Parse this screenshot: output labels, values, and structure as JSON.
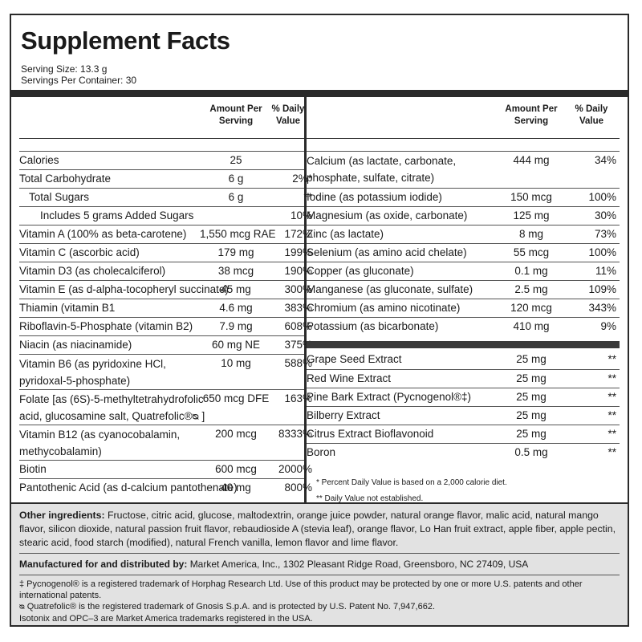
{
  "title": "Supplement Facts",
  "serving_size": "Serving Size: 13.3 g",
  "servings_per_container": "Servings Per Container: 30",
  "header": {
    "amount_line1": "Amount Per",
    "amount_line2": "Serving",
    "dv_line1": "% Daily",
    "dv_line2": "Value"
  },
  "left_rows": [
    {
      "name": "Calories",
      "amount": "25",
      "dv": ""
    },
    {
      "name": "Total Carbohydrate",
      "amount": "6 g",
      "dv": "2%*"
    },
    {
      "name": "Total Sugars",
      "amount": "6 g",
      "dv": "**"
    },
    {
      "name": "Includes 5 grams Added Sugars",
      "amount": "",
      "dv": "10%"
    },
    {
      "name": "Vitamin A (100% as beta-carotene)",
      "amount": "1,550 mcg RAE",
      "dv": "172%"
    },
    {
      "name": "Vitamin C (ascorbic acid)",
      "amount": "179 mg",
      "dv": "199%"
    },
    {
      "name": "Vitamin D3 (as cholecalciferol)",
      "amount": "38 mcg",
      "dv": "190%"
    },
    {
      "name": "Vitamin E (as d-alpha-tocopheryl succinate)",
      "amount": "45 mg",
      "dv": "300%"
    },
    {
      "name": "Thiamin (vitamin B1",
      "amount": "4.6 mg",
      "dv": "383%"
    },
    {
      "name": "Riboflavin-5-Phosphate (vitamin B2)",
      "amount": "7.9 mg",
      "dv": "608%"
    },
    {
      "name": "Niacin (as niacinamide)",
      "amount": "60 mg NE",
      "dv": "375%"
    },
    {
      "name": "Vitamin B6 (as pyridoxine HCl, pyridoxal-5-phosphate)",
      "amount": "10 mg",
      "dv": "588%"
    },
    {
      "name": "Folate [as (6S)-5-methyltetrahydrofolic acid, glucosamine salt, Quatrefolic®ᴓ ]",
      "amount": "650 mcg DFE",
      "dv": "163%"
    },
    {
      "name": "Vitamin B12 (as cyanocobalamin, methycobalamin)",
      "amount": "200 mcg",
      "dv": "8333%"
    },
    {
      "name": "Biotin",
      "amount": "600 mcg",
      "dv": "2000%"
    },
    {
      "name": "Pantothenic Acid (as d-calcium pantothenate)",
      "amount": "40 mg",
      "dv": "800%"
    }
  ],
  "right_rows": [
    {
      "name": "Calcium (as lactate, carbonate, phosphate, sulfate, citrate)",
      "amount": "444 mg",
      "dv": "34%"
    },
    {
      "name": "Iodine (as potassium iodide)",
      "amount": "150 mcg",
      "dv": "100%"
    },
    {
      "name": "Magnesium (as oxide, carbonate)",
      "amount": "125 mg",
      "dv": "30%"
    },
    {
      "name": "Zinc (as lactate)",
      "amount": "8 mg",
      "dv": "73%"
    },
    {
      "name": "Selenium (as amino acid chelate)",
      "amount": "55 mcg",
      "dv": "100%"
    },
    {
      "name": "Copper (as gluconate)",
      "amount": "0.1 mg",
      "dv": "11%"
    },
    {
      "name": "Manganese (as gluconate, sulfate)",
      "amount": "2.5 mg",
      "dv": "109%"
    },
    {
      "name": "Chromium (as amino nicotinate)",
      "amount": "120 mcg",
      "dv": "343%"
    },
    {
      "name": "Potassium (as bicarbonate)",
      "amount": "410 mg",
      "dv": "9%"
    }
  ],
  "extract_rows": [
    {
      "name": "Grape Seed Extract",
      "amount": "25 mg",
      "dv": "**"
    },
    {
      "name": "Red Wine Extract",
      "amount": "25 mg",
      "dv": "**"
    },
    {
      "name": "Pine Bark Extract (Pycnogenol®‡)",
      "amount": "25 mg",
      "dv": "**"
    },
    {
      "name": "Bilberry Extract",
      "amount": "25 mg",
      "dv": "**"
    },
    {
      "name": "Citrus Extract Bioflavonoid",
      "amount": "25 mg",
      "dv": "**"
    },
    {
      "name": "Boron",
      "amount": "0.5 mg",
      "dv": "**"
    }
  ],
  "footnotes": [
    "*  Percent Daily Value is based on a 2,000 calorie diet.",
    "**  Daily Value not established."
  ],
  "other_ingredients_label": "Other ingredients:",
  "other_ingredients": "Fructose, citric acid, glucose, maltodextrin, orange juice powder, natural orange flavor, malic acid, natural mango flavor, silicon dioxide, natural passion fruit flavor, rebaudioside A (stevia leaf), orange flavor, Lo Han fruit extract, apple fiber, apple pectin, stearic acid, food starch (modified), natural French vanilla, lemon flavor and lime flavor.",
  "manufacturer_label": "Manufactured for and distributed by:",
  "manufacturer": "Market America, Inc., 1302 Pleasant Ridge Road, Greensboro, NC 27409, USA",
  "trademark_notes": [
    "‡ Pycnogenol® is a registered trademark of Horphag Research Ltd. Use of this product may be protected by one or more U.S. patents and other international patents.",
    "ᴓ Quatrefolic® is the registered trademark of Gnosis S.p.A. and is protected by U.S. Patent No. 7,947,662.",
    "Isotonix and OPC–3 are Market America trademarks registered in the USA."
  ]
}
